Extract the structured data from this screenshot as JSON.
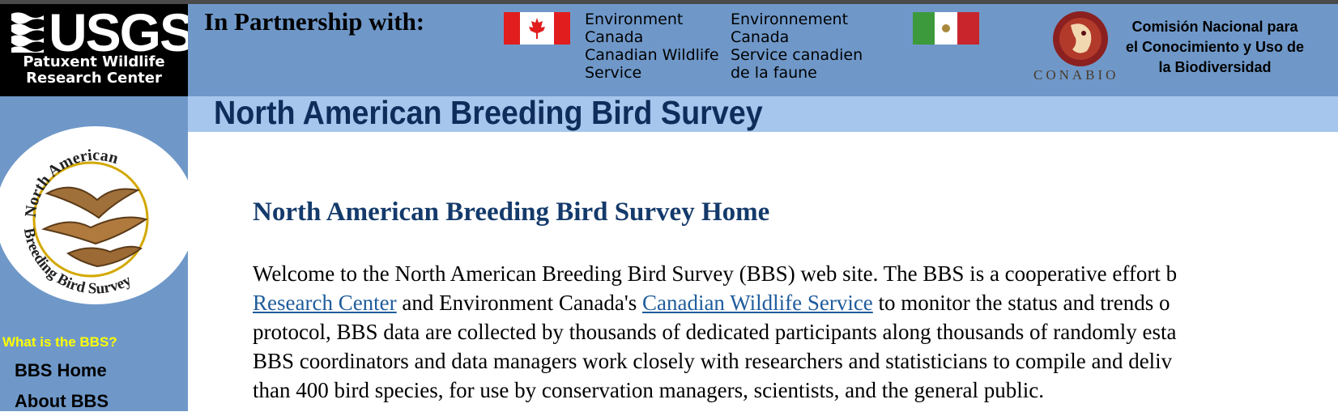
{
  "usgs": {
    "logo_text": "USGS",
    "center_line1": "Patuxent Wildlife",
    "center_line2": "Research Center"
  },
  "partner": {
    "title": "In Partnership with:",
    "ec_en": [
      "Environment",
      "Canada",
      "Canadian Wildlife",
      "Service"
    ],
    "ec_fr": [
      "Environnement",
      "Canada",
      "Service canadien",
      "de la faune"
    ],
    "conabio_word": "CONABIO",
    "conabio_name": [
      "Comisión Nacional para",
      "el Conocimiento y Uso de",
      "la Biodiversidad"
    ]
  },
  "header": {
    "title": "North American Breeding Bird Survey"
  },
  "sidebar": {
    "logo_top_text": "North American",
    "logo_bottom_text": "Breeding Bird Survey",
    "section_heading": "What is the BBS?",
    "items": [
      {
        "label": "BBS Home"
      },
      {
        "label": "About BBS"
      }
    ]
  },
  "main": {
    "heading": "North American Breeding Bird Survey Home",
    "intro": {
      "l1": "Welcome to the North American Breeding Bird Survey (BBS) web site. The BBS is a cooperative effort b",
      "l2_link1": "Research Center",
      "l2_mid": " and Environment Canada's ",
      "l2_link2": "Canadian Wildlife Service",
      "l2_end": " to monitor the status and trends o",
      "l3": "protocol, BBS data are collected by thousands of dedicated participants along thousands of randomly esta",
      "l4": "BBS coordinators and data managers work closely with researchers and statisticians to compile and deliv",
      "l5": "than 400 bird species, for use by conservation managers, scientists, and the general public."
    }
  },
  "colors": {
    "nav_blue": "#6f98c9",
    "band_blue": "#a7c6ee",
    "title_navy": "#0f2d5a",
    "link_blue": "#1f5c9c",
    "nav_heading_yellow": "#ffff00"
  }
}
